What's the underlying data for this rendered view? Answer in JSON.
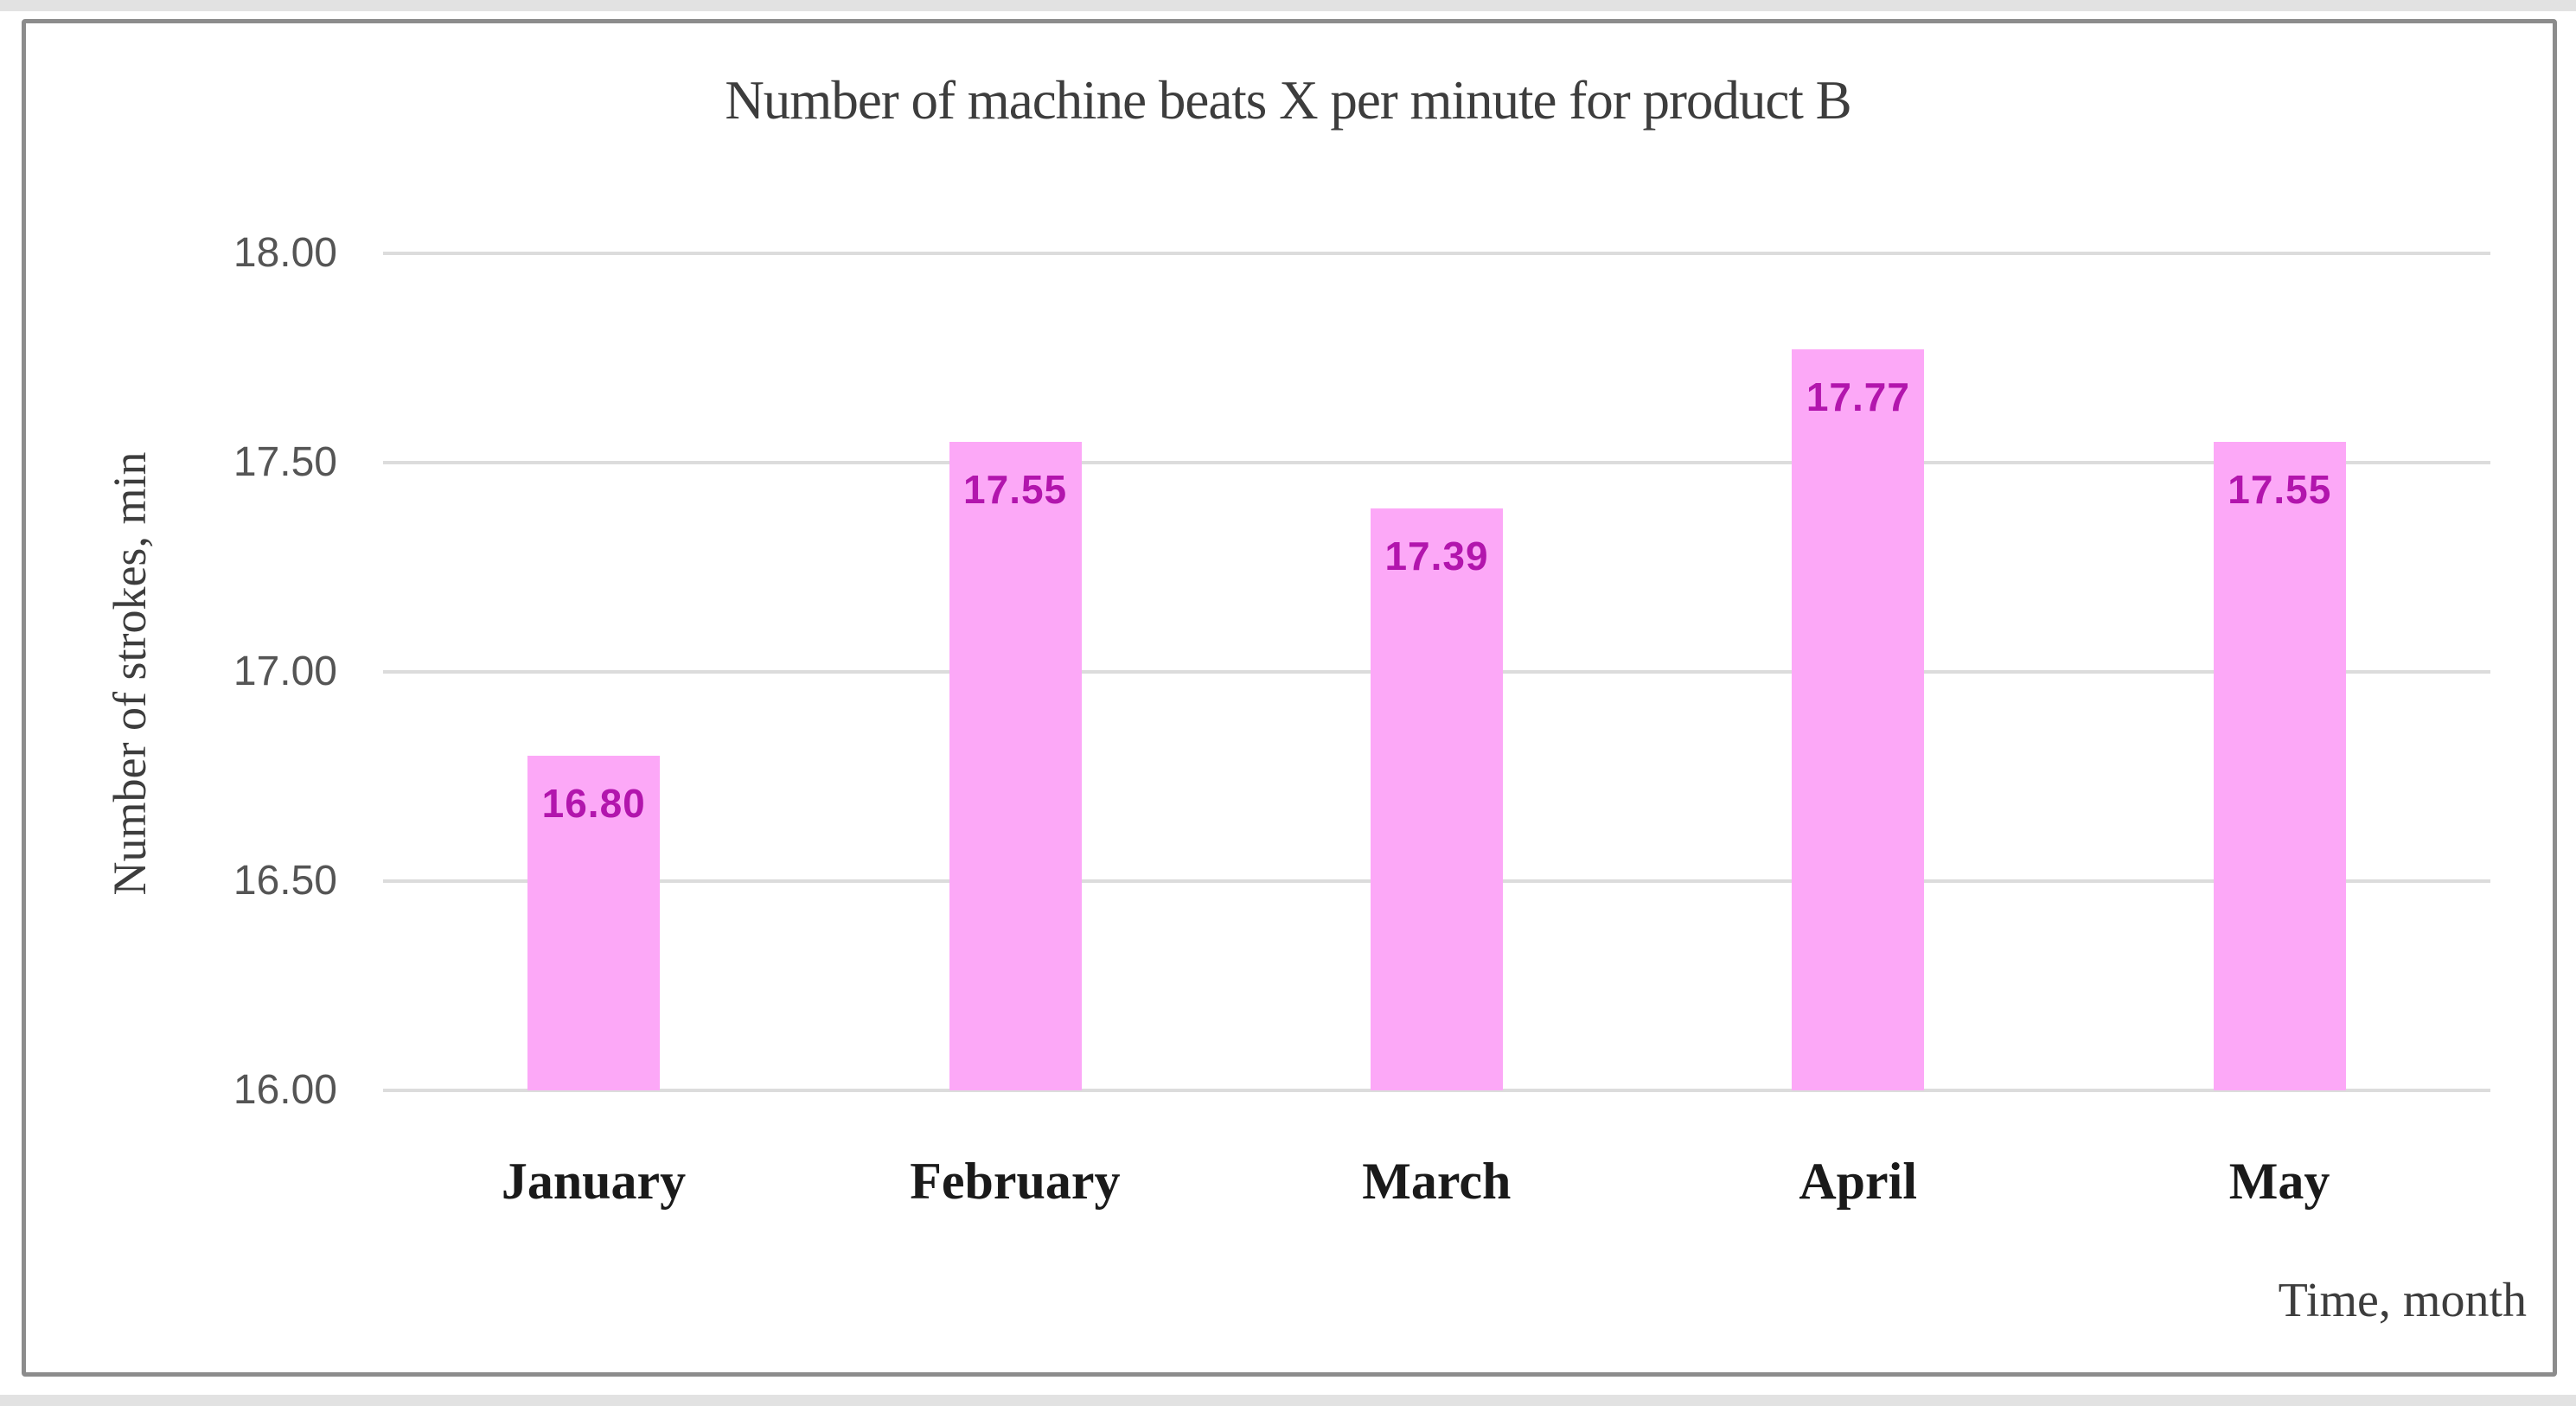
{
  "chart_data": {
    "type": "bar",
    "title": "Number of machine beats X per minute for product B",
    "categories": [
      "January",
      "February",
      "March",
      "April",
      "May"
    ],
    "values": [
      16.8,
      17.55,
      17.39,
      17.77,
      17.55
    ],
    "bar_labels": [
      "16.80",
      "17.55",
      "17.39",
      "17.77",
      "17.55"
    ],
    "xlabel": "Time, month",
    "ylabel": "Number of strokes, min",
    "ylim": [
      16.0,
      18.0
    ],
    "yticks": [
      {
        "value": 18.0,
        "label": "18.00"
      },
      {
        "value": 17.5,
        "label": "17.50"
      },
      {
        "value": 17.0,
        "label": "17.00"
      },
      {
        "value": 16.5,
        "label": "16.50"
      },
      {
        "value": 16.0,
        "label": "16.00"
      }
    ],
    "grid": true,
    "legend_position": "none",
    "colors": {
      "bar_fill": "#fca8f7",
      "bar_value_label": "#b215ad",
      "gridline": "#dcdcdc",
      "frame_border": "#8c8c8c",
      "tick_text": "#555555",
      "category_text": "#1a1a1a",
      "title_text": "#3d3d3d"
    }
  }
}
